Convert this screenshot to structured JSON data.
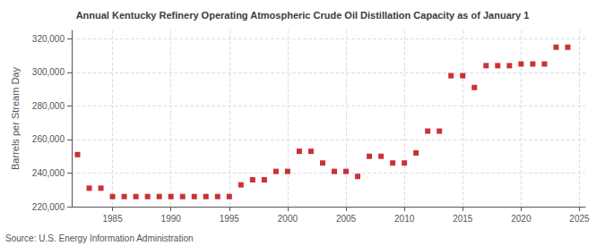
{
  "chart_data": {
    "type": "scatter",
    "title": "Annual Kentucky Refinery Operating Atmospheric Crude Oil Distillation Capacity as of January 1",
    "ylabel": "Barrels per Stream Day",
    "annotations": [
      "Source: U.S. Energy Information Administration"
    ],
    "x": [
      1982,
      1983,
      1984,
      1985,
      1986,
      1987,
      1988,
      1989,
      1990,
      1991,
      1992,
      1993,
      1994,
      1995,
      1996,
      1997,
      1998,
      1999,
      2000,
      2001,
      2002,
      2003,
      2004,
      2005,
      2006,
      2007,
      2008,
      2009,
      2010,
      2011,
      2012,
      2013,
      2014,
      2015,
      2016,
      2017,
      2018,
      2019,
      2020,
      2021,
      2022,
      2023,
      2024
    ],
    "values": [
      251000,
      231000,
      231000,
      226000,
      226000,
      226000,
      226000,
      226000,
      226000,
      226000,
      226000,
      226000,
      226000,
      226000,
      233000,
      236000,
      236000,
      241000,
      241000,
      253000,
      253000,
      246000,
      241000,
      241000,
      238000,
      250000,
      250000,
      246000,
      246000,
      252000,
      265000,
      265000,
      298000,
      298000,
      291000,
      304000,
      304000,
      304000,
      305000,
      305000,
      305000,
      315000,
      315000
    ],
    "color": "#bb0000",
    "marker": "square",
    "xlim": [
      1981.5,
      2025.5
    ],
    "xticks": [
      1985,
      1990,
      1995,
      2000,
      2005,
      2010,
      2015,
      2020,
      2025
    ],
    "ylim": [
      220000,
      325000
    ],
    "yticks": [
      {
        "value": 220000,
        "label": "220,000"
      },
      {
        "value": 240000,
        "label": "240,000"
      },
      {
        "value": 260000,
        "label": "260,000"
      },
      {
        "value": 280000,
        "label": "280,000"
      },
      {
        "value": 300000,
        "label": "300,000"
      },
      {
        "value": 320000,
        "label": "320,000"
      }
    ],
    "grid": true
  }
}
